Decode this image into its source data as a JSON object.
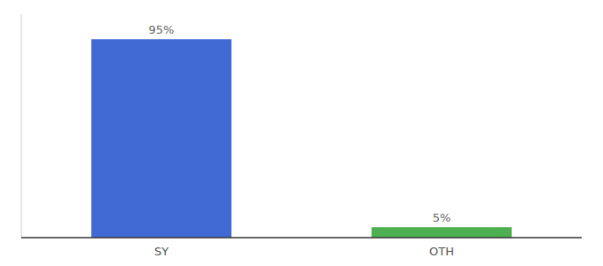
{
  "chart_data": {
    "type": "bar",
    "categories": [
      "SY",
      "OTH"
    ],
    "values": [
      95,
      5
    ],
    "value_labels": [
      "95%",
      "5%"
    ],
    "colors": [
      "#4169d4",
      "#4caf50"
    ],
    "ylim": [
      0,
      107
    ],
    "data_labels": true,
    "tick_labels": "x"
  }
}
